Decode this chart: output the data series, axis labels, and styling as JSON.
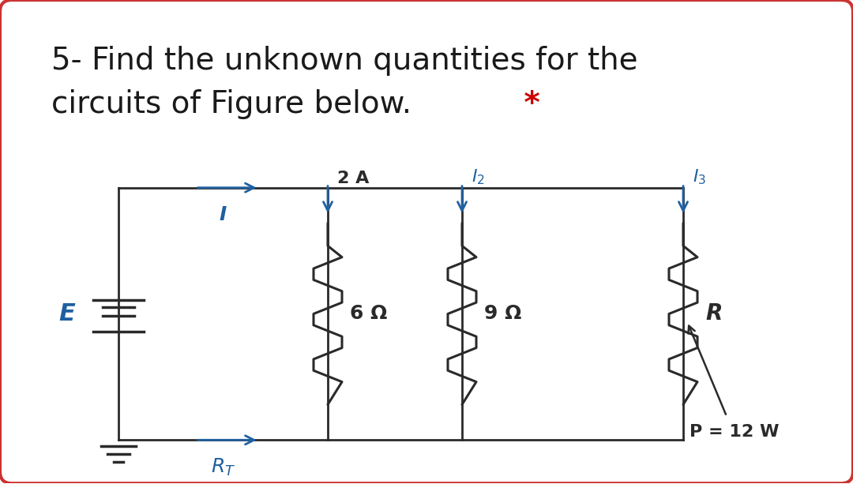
{
  "title_line1": "5- Find the unknown quantities for the",
  "title_line2": "circuits of Figure below.",
  "title_star": " *",
  "title_color": "#1a1a1a",
  "star_color": "#cc0000",
  "bg_color": "#ffffff",
  "border_color": "#cc3333",
  "circuit_color": "#2a2a2a",
  "label_color": "#2060a0",
  "arrow_color": "#2060a0",
  "resistor_color": "#1a1a1a",
  "label_I": "I",
  "label_RT": "R",
  "label_2A": "2 A",
  "label_I2": "I",
  "label_I3": "I",
  "label_6ohm": "6 Ω",
  "label_9ohm": "9 Ω",
  "label_R": "R",
  "label_P": "P = 12 W",
  "font_title": 28,
  "font_label": 16
}
